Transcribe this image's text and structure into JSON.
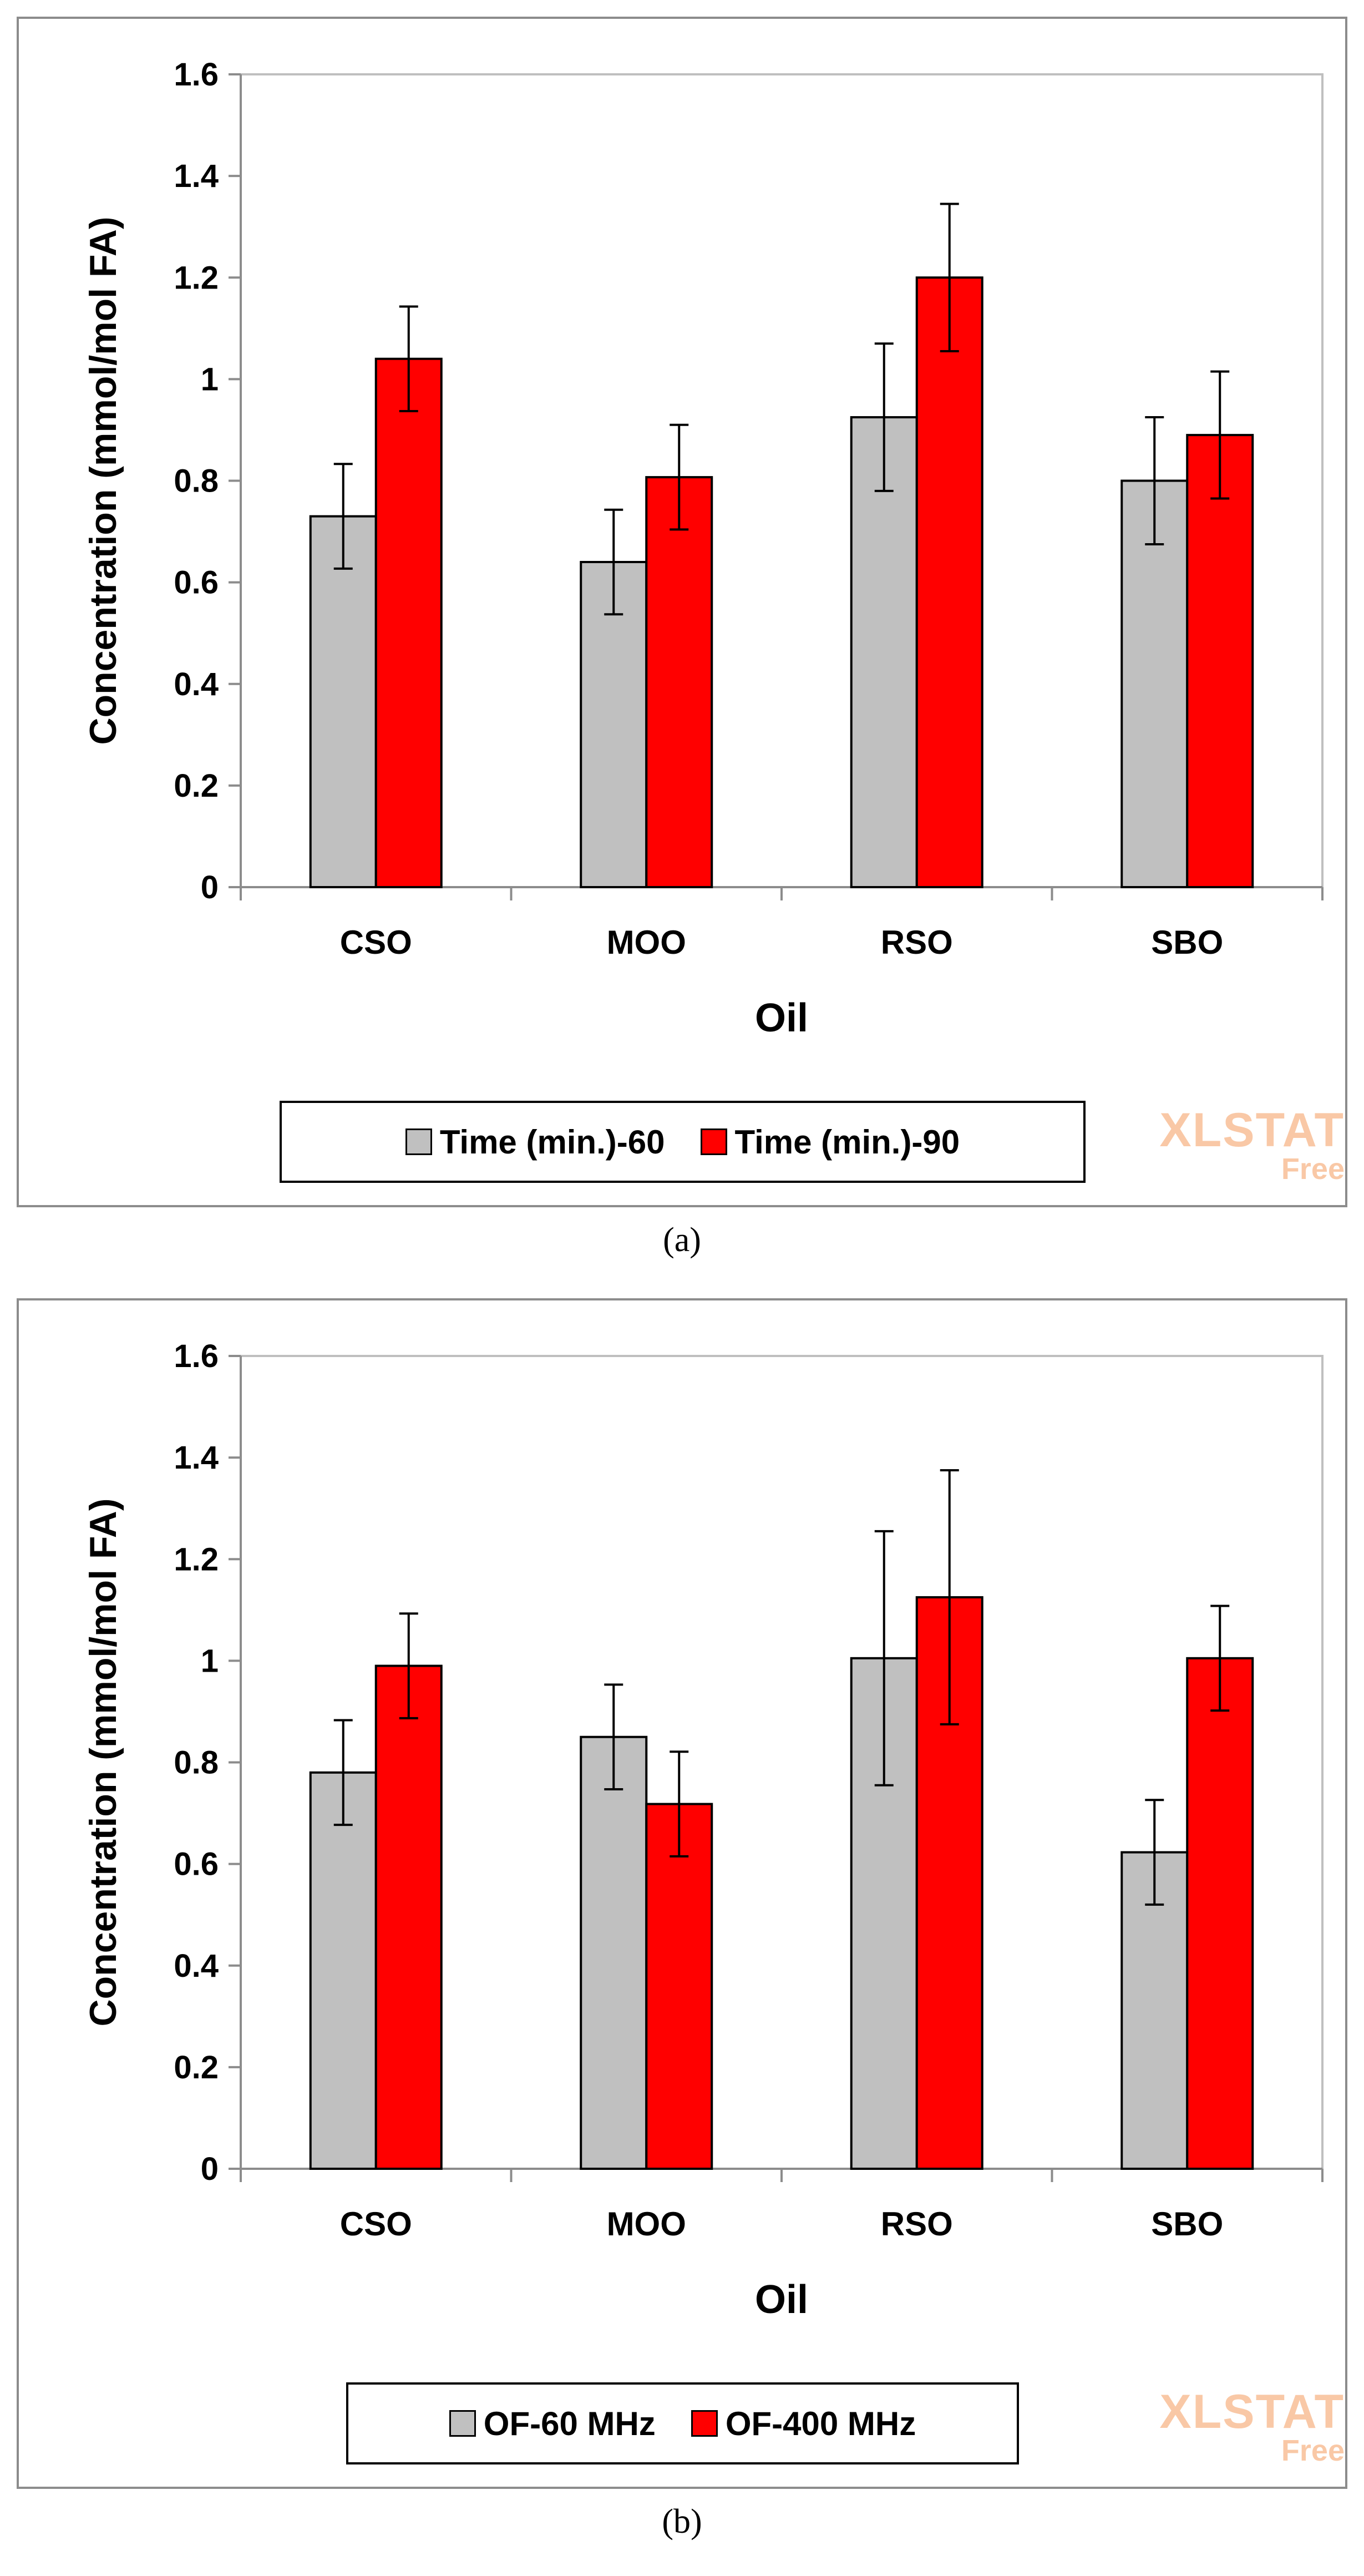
{
  "figure": {
    "watermark": {
      "main": "XLSTAT",
      "sub": "Free",
      "color": "#f9c8a6"
    }
  },
  "chart_data": [
    {
      "id": "a",
      "type": "bar",
      "caption": "(a)",
      "title": "",
      "xlabel": "Oil",
      "ylabel": "Concentration (mmol/mol FA)",
      "ylim": [
        0,
        1.6
      ],
      "yticks": [
        0,
        0.2,
        0.4,
        0.6,
        0.8,
        1,
        1.2,
        1.4,
        1.6
      ],
      "ytick_labels": [
        "0",
        "0.2",
        "0.4",
        "0.6",
        "0.8",
        "1",
        "1.2",
        "1.4",
        "1.6"
      ],
      "grid": false,
      "legend_position": "bottom",
      "categories": [
        "CSO",
        "MOO",
        "RSO",
        "SBO"
      ],
      "series": [
        {
          "name": "Time (min.)-60",
          "color": "#c0c0c0",
          "values": [
            0.73,
            0.64,
            0.925,
            0.8
          ],
          "errors": [
            0.103,
            0.103,
            0.145,
            0.125
          ]
        },
        {
          "name": "Time (min.)-90",
          "color": "#ff0000",
          "values": [
            1.04,
            0.807,
            1.2,
            0.89
          ],
          "errors": [
            0.103,
            0.103,
            0.145,
            0.125
          ]
        }
      ]
    },
    {
      "id": "b",
      "type": "bar",
      "caption": "(b)",
      "title": "",
      "xlabel": "Oil",
      "ylabel": "Concentration (mmol/mol FA)",
      "ylim": [
        0,
        1.6
      ],
      "yticks": [
        0,
        0.2,
        0.4,
        0.6,
        0.8,
        1,
        1.2,
        1.4,
        1.6
      ],
      "ytick_labels": [
        "0",
        "0.2",
        "0.4",
        "0.6",
        "0.8",
        "1",
        "1.2",
        "1.4",
        "1.6"
      ],
      "grid": false,
      "legend_position": "bottom",
      "categories": [
        "CSO",
        "MOO",
        "RSO",
        "SBO"
      ],
      "series": [
        {
          "name": "OF-60 MHz",
          "color": "#c0c0c0",
          "values": [
            0.78,
            0.85,
            1.005,
            0.623
          ],
          "errors": [
            0.103,
            0.103,
            0.25,
            0.103
          ]
        },
        {
          "name": "OF-400 MHz",
          "color": "#ff0000",
          "values": [
            0.99,
            0.718,
            1.125,
            1.005
          ],
          "errors": [
            0.103,
            0.103,
            0.25,
            0.103
          ]
        }
      ]
    }
  ]
}
